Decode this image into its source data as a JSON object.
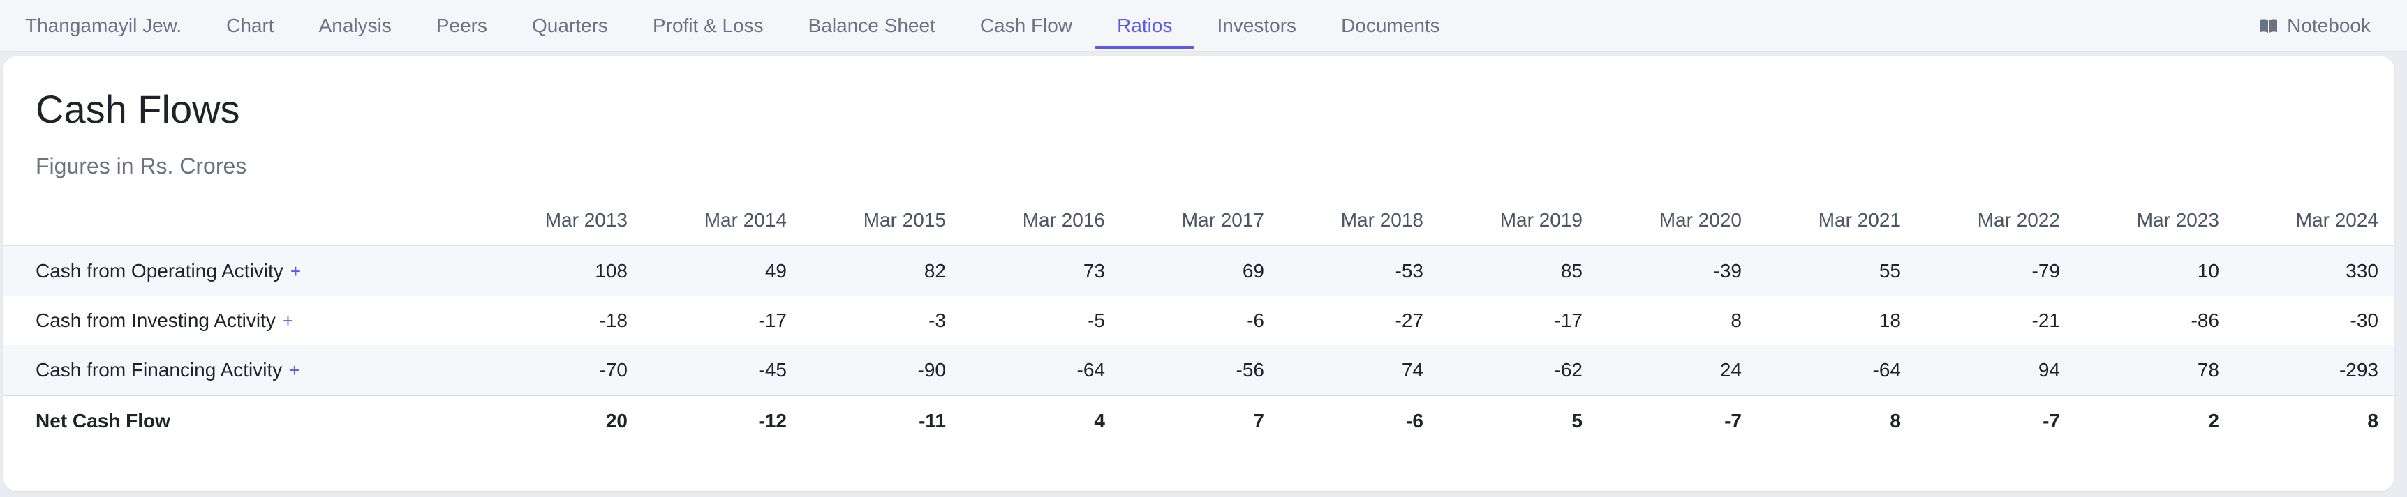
{
  "nav": {
    "items": [
      {
        "label": "Thangamayil Jew.",
        "active": false
      },
      {
        "label": "Chart",
        "active": false
      },
      {
        "label": "Analysis",
        "active": false
      },
      {
        "label": "Peers",
        "active": false
      },
      {
        "label": "Quarters",
        "active": false
      },
      {
        "label": "Profit & Loss",
        "active": false
      },
      {
        "label": "Balance Sheet",
        "active": false
      },
      {
        "label": "Cash Flow",
        "active": false
      },
      {
        "label": "Ratios",
        "active": true
      },
      {
        "label": "Investors",
        "active": false
      },
      {
        "label": "Documents",
        "active": false
      }
    ],
    "notebook_label": "Notebook",
    "notebook_icon": "book-icon"
  },
  "section": {
    "title": "Cash Flows",
    "subtitle": "Figures in Rs. Crores"
  },
  "table": {
    "columns": [
      "Mar 2013",
      "Mar 2014",
      "Mar 2015",
      "Mar 2016",
      "Mar 2017",
      "Mar 2018",
      "Mar 2019",
      "Mar 2020",
      "Mar 2021",
      "Mar 2022",
      "Mar 2023",
      "Mar 2024"
    ],
    "rows": [
      {
        "label": "Cash from Operating Activity",
        "expandable": true,
        "plus": "+",
        "values": [
          "108",
          "49",
          "82",
          "73",
          "69",
          "-53",
          "85",
          "-39",
          "55",
          "-79",
          "10",
          "330"
        ]
      },
      {
        "label": "Cash from Investing Activity",
        "expandable": true,
        "plus": "+",
        "values": [
          "-18",
          "-17",
          "-3",
          "-5",
          "-6",
          "-27",
          "-17",
          "8",
          "18",
          "-21",
          "-86",
          "-30"
        ]
      },
      {
        "label": "Cash from Financing Activity",
        "expandable": true,
        "plus": "+",
        "values": [
          "-70",
          "-45",
          "-90",
          "-64",
          "-56",
          "74",
          "-62",
          "24",
          "-64",
          "94",
          "78",
          "-293"
        ]
      }
    ],
    "total": {
      "label": "Net Cash Flow",
      "values": [
        "20",
        "-12",
        "-11",
        "4",
        "7",
        "-6",
        "5",
        "-7",
        "8",
        "-7",
        "2",
        "8"
      ]
    }
  },
  "colors": {
    "accent": "#5b5ce6",
    "page_bg": "#ebecf1",
    "nav_bg": "#f5f6fa",
    "row_shade": "#f6f7fb"
  }
}
